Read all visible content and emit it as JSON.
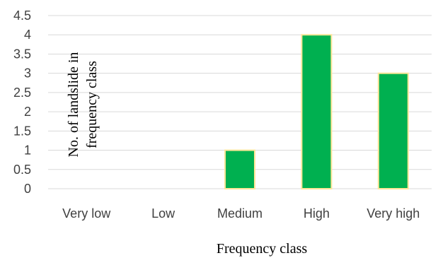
{
  "chart_data": {
    "type": "bar",
    "categories": [
      "Very low",
      "Low",
      "Medium",
      "High",
      "Very high"
    ],
    "values": [
      0,
      0,
      1,
      4,
      3
    ],
    "title": "",
    "xlabel": "Frequency class",
    "ylabel_lines": [
      "No. of landslide in",
      "frequency class"
    ],
    "ylim": [
      0,
      4.5
    ],
    "yticks": [
      "0",
      "0.5",
      "1",
      "1.5",
      "2",
      "2.5",
      "3",
      "3.5",
      "4",
      "4.5"
    ],
    "grid": true,
    "legend": "none",
    "colors": {
      "bar_fill": "#00b050",
      "bar_stroke": "#ffe699",
      "grid": "#d9d9d9"
    }
  }
}
